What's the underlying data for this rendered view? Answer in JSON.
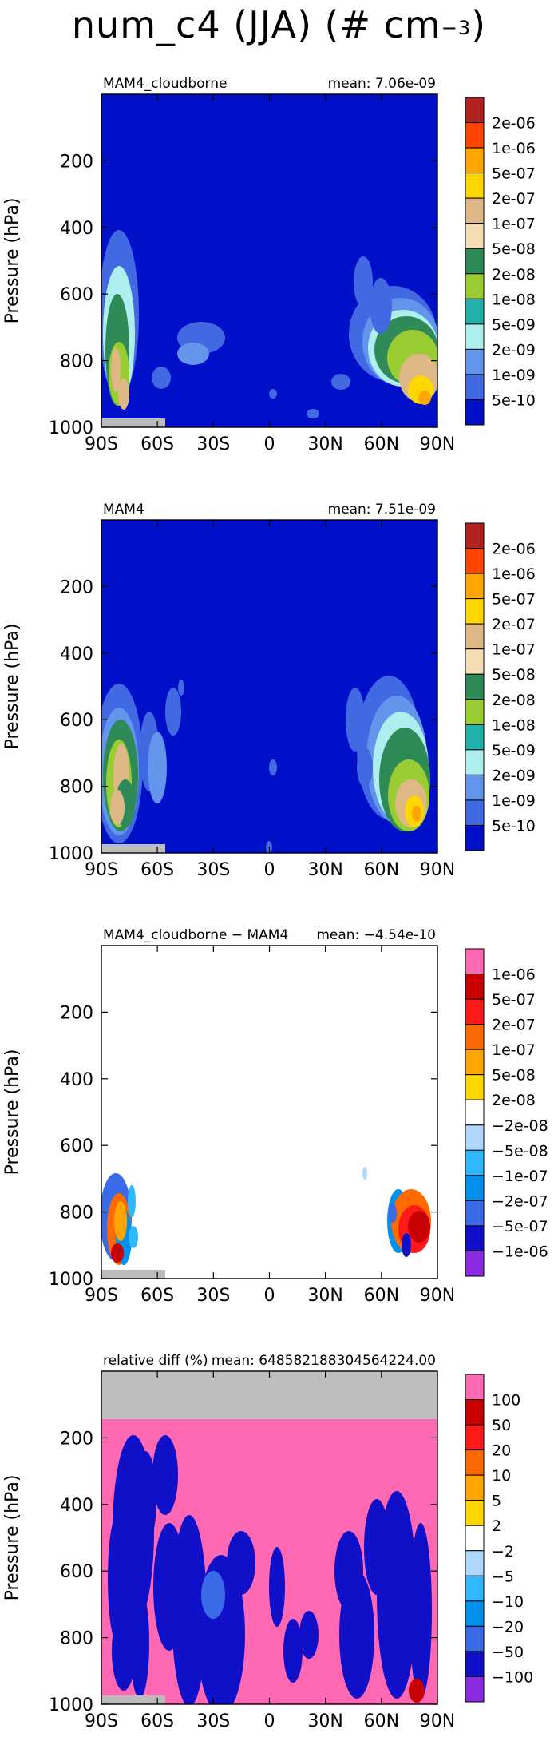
{
  "figure": {
    "title": "num_c4 (JJA) (# cm",
    "title_exp": "−3"
  },
  "chart_data": [
    {
      "type": "heatmap",
      "left_label": "MAM4_cloudborne",
      "right_label": "mean: 7.06e-09",
      "ylabel": "Pressure (hPa)",
      "y_ticks": [
        "200",
        "400",
        "600",
        "800",
        "1000"
      ],
      "x_ticks": [
        "90S",
        "60S",
        "30S",
        "0",
        "30N",
        "60N",
        "90N"
      ],
      "xlim": [
        -90,
        90
      ],
      "ylim": [
        1000,
        0
      ],
      "background_color": "#0010c8",
      "colorbar": {
        "labels": [
          "2e-06",
          "1e-06",
          "5e-07",
          "2e-07",
          "1e-07",
          "5e-08",
          "2e-08",
          "1e-08",
          "5e-09",
          "2e-09",
          "1e-09",
          "5e-10"
        ],
        "colors": [
          "#b22222",
          "#ff4500",
          "#ffa500",
          "#ffd700",
          "#deb887",
          "#f5deb3",
          "#2e8b57",
          "#9acd32",
          "#20b2aa",
          "#afeeee",
          "#6495ed",
          "#4169e1",
          "#0010c8"
        ]
      }
    },
    {
      "type": "heatmap",
      "left_label": "MAM4",
      "right_label": "mean: 7.51e-09",
      "ylabel": "Pressure (hPa)",
      "y_ticks": [
        "200",
        "400",
        "600",
        "800",
        "1000"
      ],
      "x_ticks": [
        "90S",
        "60S",
        "30S",
        "0",
        "30N",
        "60N",
        "90N"
      ],
      "xlim": [
        -90,
        90
      ],
      "ylim": [
        1000,
        0
      ],
      "background_color": "#0010c8",
      "colorbar": {
        "labels": [
          "2e-06",
          "1e-06",
          "5e-07",
          "2e-07",
          "1e-07",
          "5e-08",
          "2e-08",
          "1e-08",
          "5e-09",
          "2e-09",
          "1e-09",
          "5e-10"
        ],
        "colors": [
          "#b22222",
          "#ff4500",
          "#ffa500",
          "#ffd700",
          "#deb887",
          "#f5deb3",
          "#2e8b57",
          "#9acd32",
          "#20b2aa",
          "#afeeee",
          "#6495ed",
          "#4169e1",
          "#0010c8"
        ]
      }
    },
    {
      "type": "heatmap",
      "left_label": "MAM4_cloudborne − MAM4",
      "right_label": "mean: −4.54e-10",
      "ylabel": "Pressure (hPa)",
      "y_ticks": [
        "200",
        "400",
        "600",
        "800",
        "1000"
      ],
      "x_ticks": [
        "90S",
        "60S",
        "30S",
        "0",
        "30N",
        "60N",
        "90N"
      ],
      "xlim": [
        -90,
        90
      ],
      "ylim": [
        1000,
        0
      ],
      "background_color": "#ffffff",
      "colorbar": {
        "labels": [
          "1e-06",
          "5e-07",
          "2e-07",
          "1e-07",
          "5e-08",
          "2e-08",
          "−2e-08",
          "−5e-08",
          "−1e-07",
          "−2e-07",
          "−5e-07",
          "−1e-06"
        ],
        "colors": [
          "#ff69b4",
          "#c80000",
          "#ff1a1a",
          "#ff6a00",
          "#ffa500",
          "#ffd700",
          "#ffffff",
          "#b0d8ff",
          "#30b8ff",
          "#0090ee",
          "#3a6ae8",
          "#1010c8",
          "#8a2be2"
        ]
      }
    },
    {
      "type": "heatmap",
      "left_label": "relative diff (%)",
      "right_label": "mean: 6485821883045642​24.00",
      "ylabel": "Pressure (hPa)",
      "y_ticks": [
        "200",
        "400",
        "600",
        "800",
        "1000"
      ],
      "x_ticks": [
        "90S",
        "60S",
        "30S",
        "0",
        "30N",
        "60N",
        "90N"
      ],
      "xlim": [
        -90,
        90
      ],
      "ylim": [
        1000,
        0
      ],
      "background_color": "#ff69b4",
      "colorbar": {
        "labels": [
          "100",
          "50",
          "20",
          "10",
          "5",
          "2",
          "−2",
          "−5",
          "−10",
          "−20",
          "−50",
          "−100"
        ],
        "colors": [
          "#ff69b4",
          "#c80000",
          "#ff1a1a",
          "#ff6a00",
          "#ffa500",
          "#ffd700",
          "#ffffff",
          "#b0d8ff",
          "#30b8ff",
          "#0090ee",
          "#3a6ae8",
          "#1010c8",
          "#8a2be2"
        ]
      }
    }
  ]
}
